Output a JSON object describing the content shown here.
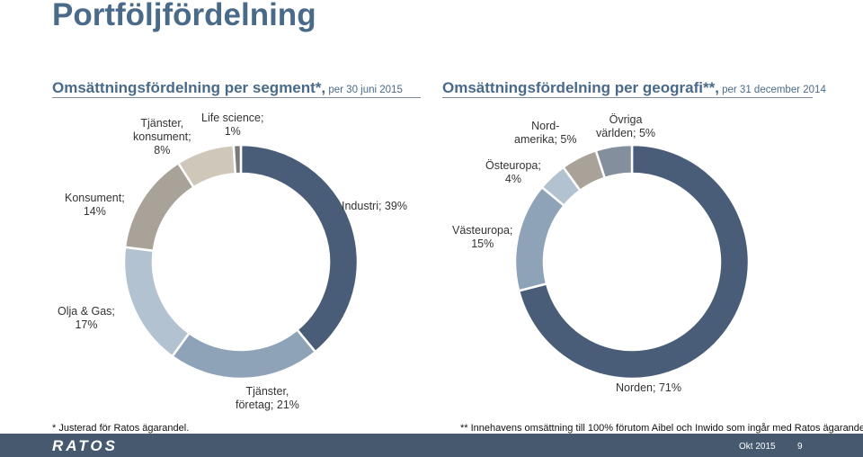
{
  "page": {
    "title": "Portföljfördelning",
    "footnote_left": "* Justerad för Ratos ägarandel.",
    "footnote_right": "** Innehavens omsättning till 100% förutom Aibel och Inwido som ingår med Ratos ägarandel.",
    "logo": "RATOS",
    "date": "Okt 2015",
    "page_number": "9"
  },
  "chart_data": [
    {
      "type": "pie",
      "subtitle_main": "Omsättningsfördelning per segment*,",
      "subtitle_small": " per 30 juni 2015",
      "categories": [
        "Industri",
        "Tjänster, företag",
        "Olja & Gas",
        "Konsument",
        "Tjänster, konsument",
        "Life science"
      ],
      "values": [
        39,
        21,
        17,
        14,
        8,
        1
      ],
      "labels": [
        "Industri; 39%",
        "Tjänster,\nföretag; 21%",
        "Olja & Gas;\n17%",
        "Konsument;\n14%",
        "Tjänster,\nkonsument;\n8%",
        "Life science;\n1%"
      ],
      "colors": [
        "#4a5d78",
        "#8ea2b8",
        "#b3c2d0",
        "#a8a298",
        "#cfc7ba",
        "#7a7a7a"
      ],
      "donut": true
    },
    {
      "type": "pie",
      "subtitle_main": "Omsättningsfördelning per geografi**,",
      "subtitle_small": " per 31 december 2014",
      "categories": [
        "Norden",
        "Västeuropa",
        "Östeuropa",
        "Nordamerika",
        "Övriga världen"
      ],
      "values": [
        71,
        15,
        4,
        5,
        5
      ],
      "labels": [
        "Norden; 71%",
        "Västeuropa;\n15%",
        "Östeuropa;\n4%",
        "Nord-\namerika; 5%",
        "Övriga\nvärlden; 5%"
      ],
      "colors": [
        "#4a5d78",
        "#8ea2b8",
        "#b3c2d0",
        "#a8a298",
        "#838f9c"
      ],
      "donut": true
    }
  ]
}
